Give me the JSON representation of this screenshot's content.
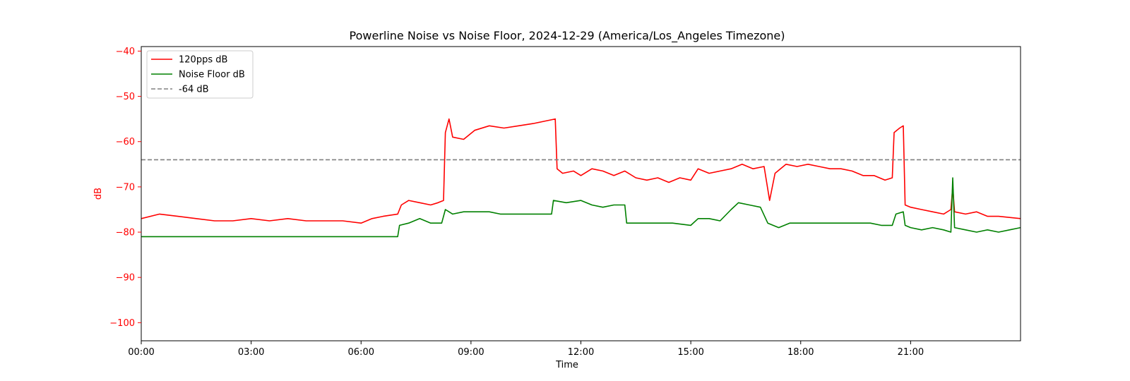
{
  "chart_data": {
    "type": "line",
    "title": "Powerline Noise vs Noise Floor, 2024-12-29 (America/Los_Angeles Timezone)",
    "xlabel": "Time",
    "ylabel": "dB",
    "xlim_hours": [
      0,
      24
    ],
    "ylim": [
      -104,
      -39
    ],
    "x_ticks": [
      {
        "hour": 0,
        "label": "00:00"
      },
      {
        "hour": 3,
        "label": "03:00"
      },
      {
        "hour": 6,
        "label": "06:00"
      },
      {
        "hour": 9,
        "label": "09:00"
      },
      {
        "hour": 12,
        "label": "12:00"
      },
      {
        "hour": 15,
        "label": "15:00"
      },
      {
        "hour": 18,
        "label": "18:00"
      },
      {
        "hour": 21,
        "label": "21:00"
      }
    ],
    "y_ticks": [
      -40,
      -50,
      -60,
      -70,
      -80,
      -90,
      -100
    ],
    "y_tick_color": "#ff0000",
    "grid": false,
    "legend_position": "top-left",
    "series": [
      {
        "name": "120pps dB",
        "color": "#ff0000",
        "style": "solid",
        "points": [
          [
            0,
            -77
          ],
          [
            0.5,
            -76
          ],
          [
            1,
            -76.5
          ],
          [
            1.5,
            -77
          ],
          [
            2,
            -77.5
          ],
          [
            2.5,
            -77.5
          ],
          [
            3,
            -77
          ],
          [
            3.5,
            -77.5
          ],
          [
            4,
            -77
          ],
          [
            4.5,
            -77.5
          ],
          [
            5,
            -77.5
          ],
          [
            5.5,
            -77.5
          ],
          [
            6,
            -78
          ],
          [
            6.3,
            -77
          ],
          [
            6.6,
            -76.5
          ],
          [
            7,
            -76
          ],
          [
            7.1,
            -74
          ],
          [
            7.3,
            -73
          ],
          [
            7.6,
            -73.5
          ],
          [
            7.9,
            -74
          ],
          [
            8.1,
            -73.5
          ],
          [
            8.25,
            -73
          ],
          [
            8.3,
            -58
          ],
          [
            8.4,
            -55
          ],
          [
            8.5,
            -59
          ],
          [
            8.8,
            -59.5
          ],
          [
            9.1,
            -57.5
          ],
          [
            9.5,
            -56.5
          ],
          [
            9.9,
            -57
          ],
          [
            10.3,
            -56.5
          ],
          [
            10.7,
            -56
          ],
          [
            11,
            -55.5
          ],
          [
            11.3,
            -55
          ],
          [
            11.35,
            -66
          ],
          [
            11.5,
            -67
          ],
          [
            11.8,
            -66.5
          ],
          [
            12,
            -67.5
          ],
          [
            12.3,
            -66
          ],
          [
            12.6,
            -66.5
          ],
          [
            12.9,
            -67.5
          ],
          [
            13.2,
            -66.5
          ],
          [
            13.5,
            -68
          ],
          [
            13.8,
            -68.5
          ],
          [
            14.1,
            -68
          ],
          [
            14.4,
            -69
          ],
          [
            14.7,
            -68
          ],
          [
            15,
            -68.5
          ],
          [
            15.2,
            -66
          ],
          [
            15.5,
            -67
          ],
          [
            15.8,
            -66.5
          ],
          [
            16.1,
            -66
          ],
          [
            16.4,
            -65
          ],
          [
            16.7,
            -66
          ],
          [
            17,
            -65.5
          ],
          [
            17.15,
            -73
          ],
          [
            17.3,
            -67
          ],
          [
            17.6,
            -65
          ],
          [
            17.9,
            -65.5
          ],
          [
            18.2,
            -65
          ],
          [
            18.5,
            -65.5
          ],
          [
            18.8,
            -66
          ],
          [
            19.1,
            -66
          ],
          [
            19.4,
            -66.5
          ],
          [
            19.7,
            -67.5
          ],
          [
            20,
            -67.5
          ],
          [
            20.3,
            -68.5
          ],
          [
            20.5,
            -68
          ],
          [
            20.55,
            -58
          ],
          [
            20.7,
            -57
          ],
          [
            20.8,
            -56.5
          ],
          [
            20.85,
            -74
          ],
          [
            21,
            -74.5
          ],
          [
            21.3,
            -75
          ],
          [
            21.6,
            -75.5
          ],
          [
            21.9,
            -76
          ],
          [
            22.1,
            -75
          ],
          [
            22.15,
            -70
          ],
          [
            22.2,
            -75.5
          ],
          [
            22.5,
            -76
          ],
          [
            22.8,
            -75.5
          ],
          [
            23.1,
            -76.5
          ],
          [
            23.4,
            -76.5
          ],
          [
            24,
            -77
          ]
        ]
      },
      {
        "name": "Noise Floor dB",
        "color": "#008000",
        "style": "solid",
        "points": [
          [
            0,
            -81
          ],
          [
            0.5,
            -81
          ],
          [
            1,
            -81
          ],
          [
            2,
            -81
          ],
          [
            3,
            -81
          ],
          [
            4,
            -81
          ],
          [
            5,
            -81
          ],
          [
            6,
            -81
          ],
          [
            6.5,
            -81
          ],
          [
            7,
            -81
          ],
          [
            7.05,
            -78.5
          ],
          [
            7.3,
            -78
          ],
          [
            7.6,
            -77
          ],
          [
            7.9,
            -78
          ],
          [
            8.2,
            -78
          ],
          [
            8.3,
            -75
          ],
          [
            8.5,
            -76
          ],
          [
            8.8,
            -75.5
          ],
          [
            9.1,
            -75.5
          ],
          [
            9.5,
            -75.5
          ],
          [
            9.8,
            -76
          ],
          [
            10.2,
            -76
          ],
          [
            10.7,
            -76
          ],
          [
            11.2,
            -76
          ],
          [
            11.25,
            -73
          ],
          [
            11.6,
            -73.5
          ],
          [
            12,
            -73
          ],
          [
            12.3,
            -74
          ],
          [
            12.6,
            -74.5
          ],
          [
            12.9,
            -74
          ],
          [
            13.2,
            -74
          ],
          [
            13.25,
            -78
          ],
          [
            13.6,
            -78
          ],
          [
            14,
            -78
          ],
          [
            14.5,
            -78
          ],
          [
            15,
            -78.5
          ],
          [
            15.2,
            -77
          ],
          [
            15.5,
            -77
          ],
          [
            15.8,
            -77.5
          ],
          [
            16.1,
            -75
          ],
          [
            16.3,
            -73.5
          ],
          [
            16.6,
            -74
          ],
          [
            16.9,
            -74.5
          ],
          [
            17.1,
            -78
          ],
          [
            17.4,
            -79
          ],
          [
            17.7,
            -78
          ],
          [
            18,
            -78
          ],
          [
            18.5,
            -78
          ],
          [
            19,
            -78
          ],
          [
            19.5,
            -78
          ],
          [
            19.9,
            -78
          ],
          [
            20.2,
            -78.5
          ],
          [
            20.5,
            -78.5
          ],
          [
            20.6,
            -76
          ],
          [
            20.8,
            -75.5
          ],
          [
            20.85,
            -78.5
          ],
          [
            21,
            -79
          ],
          [
            21.3,
            -79.5
          ],
          [
            21.6,
            -79
          ],
          [
            21.9,
            -79.5
          ],
          [
            22.1,
            -80
          ],
          [
            22.15,
            -68
          ],
          [
            22.2,
            -79
          ],
          [
            22.5,
            -79.5
          ],
          [
            22.8,
            -80
          ],
          [
            23.1,
            -79.5
          ],
          [
            23.4,
            -80
          ],
          [
            23.7,
            -79.5
          ],
          [
            24,
            -79
          ]
        ]
      },
      {
        "name": "-64 dB",
        "color": "#808080",
        "style": "dashed",
        "points": [
          [
            0,
            -64
          ],
          [
            24,
            -64
          ]
        ]
      }
    ]
  }
}
